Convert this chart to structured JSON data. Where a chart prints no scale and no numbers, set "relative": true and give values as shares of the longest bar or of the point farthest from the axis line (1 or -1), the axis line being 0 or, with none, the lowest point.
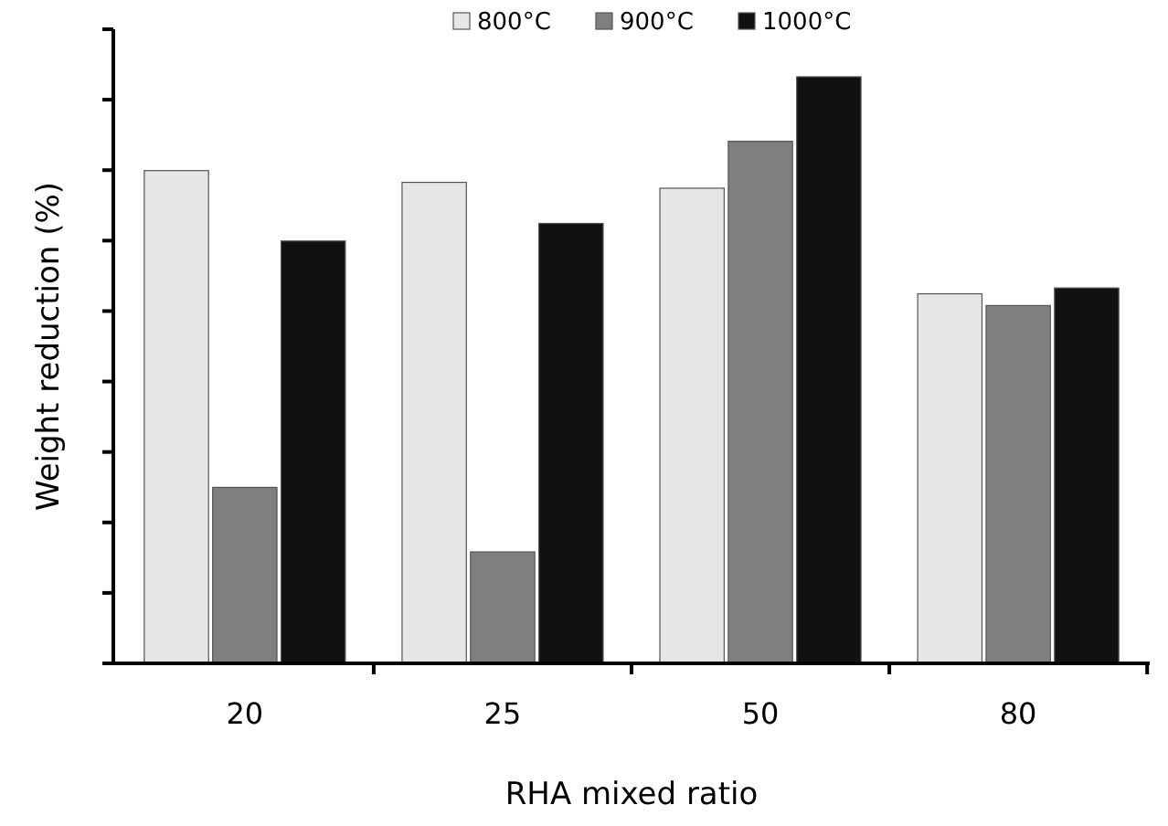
{
  "chart_data": {
    "type": "bar",
    "xlabel": "RHA mixed ratio",
    "ylabel": "Weight reduction (%)",
    "relative": true,
    "categories": [
      "20",
      "25",
      "50",
      "80"
    ],
    "legend": "top",
    "series": [
      {
        "name": "800°C",
        "color": "#e6e6e6",
        "values": [
          0.84,
          0.82,
          0.81,
          0.63
        ]
      },
      {
        "name": "900°C",
        "color": "#7f7f7f",
        "values": [
          0.3,
          0.19,
          0.89,
          0.61
        ]
      },
      {
        "name": "1000°C",
        "color": "#111111",
        "values": [
          0.72,
          0.75,
          1,
          0.64
        ]
      }
    ]
  }
}
